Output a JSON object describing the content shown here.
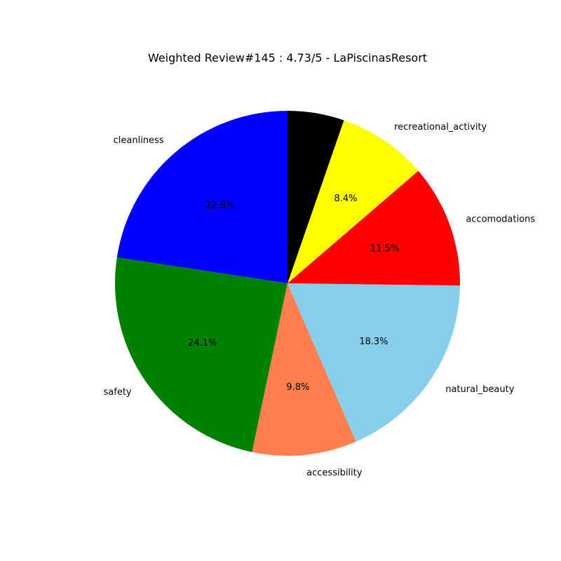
{
  "chart_data": {
    "type": "pie",
    "title": "Weighted Review#145 : 4.73/5 - LaPiscinasResort",
    "start_angle_deg": 90,
    "direction": "counterclockwise",
    "slices": [
      {
        "label": "cleanliness",
        "value": 22.6,
        "pct_label": "22.6%",
        "color": "#0000ff"
      },
      {
        "label": "safety",
        "value": 24.1,
        "pct_label": "24.1%",
        "color": "#008000"
      },
      {
        "label": "accessibility",
        "value": 9.8,
        "pct_label": "9.8%",
        "color": "#ff7f50"
      },
      {
        "label": "natural_beauty",
        "value": 18.3,
        "pct_label": "18.3%",
        "color": "#87ceeb"
      },
      {
        "label": "accomodations",
        "value": 11.5,
        "pct_label": "11.5%",
        "color": "#ff0000"
      },
      {
        "label": "recreational_activity",
        "value": 8.4,
        "pct_label": "8.4%",
        "color": "#ffff00"
      },
      {
        "label": "",
        "value": 5.3,
        "pct_label": "",
        "color": "#000000"
      }
    ],
    "legend": "none"
  }
}
